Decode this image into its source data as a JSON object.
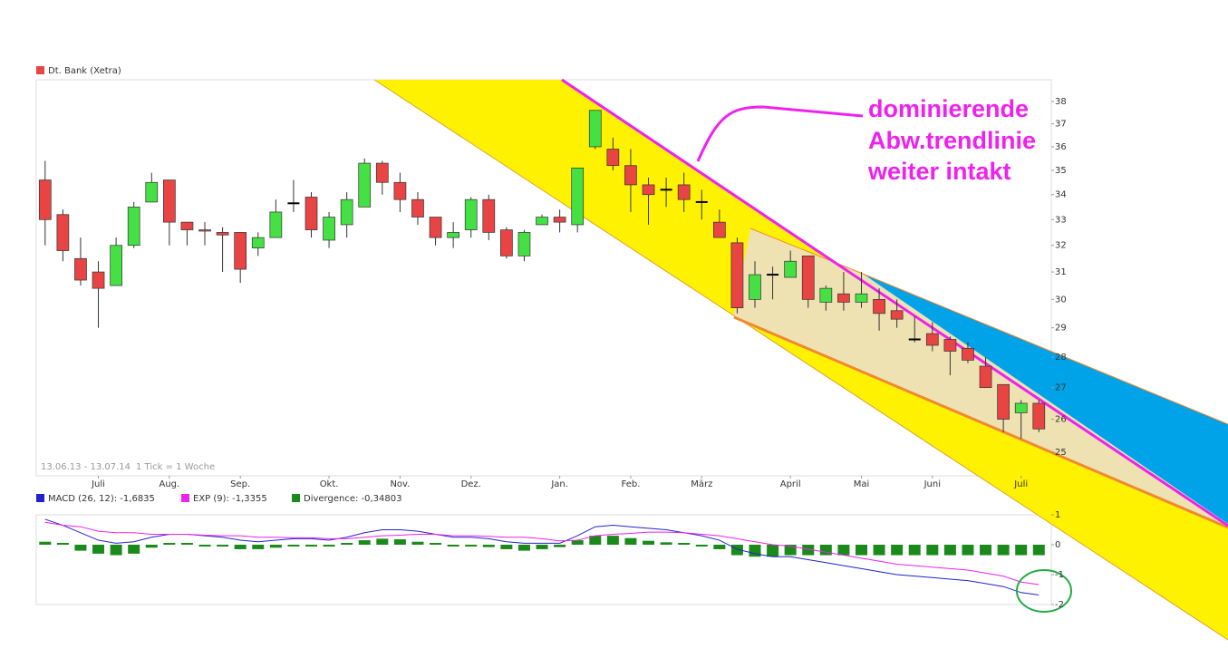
{
  "chart_data": [
    {
      "type": "candlestick",
      "legend": "Dt. Bank (Xetra)",
      "legend_color": "#e84444",
      "color_up": "#44e044",
      "color_down": "#e84444",
      "color_flat": "#000000",
      "log_scale": true,
      "ylim": [
        24.3,
        39
      ],
      "yticks": [
        25,
        26,
        27,
        28,
        29,
        30,
        31,
        32,
        33,
        34,
        35,
        36,
        37,
        38
      ],
      "xlim": [
        -0.5,
        56.7
      ],
      "xticks": [
        {
          "value": 3,
          "label": "Juli"
        },
        {
          "value": 7,
          "label": "Aug."
        },
        {
          "value": 11,
          "label": "Sep."
        },
        {
          "value": 16,
          "label": "Okt."
        },
        {
          "value": 20,
          "label": "Nov."
        },
        {
          "value": 24,
          "label": "Dez."
        },
        {
          "value": 29,
          "label": "Jan."
        },
        {
          "value": 33,
          "label": "Feb."
        },
        {
          "value": 37,
          "label": "März"
        },
        {
          "value": 42,
          "label": "April"
        },
        {
          "value": 46,
          "label": "Mai"
        },
        {
          "value": 50,
          "label": "Juni"
        },
        {
          "value": 55,
          "label": "Juli"
        }
      ],
      "open": [
        34.6,
        33.2,
        31.5,
        31.0,
        30.5,
        32.0,
        33.7,
        34.6,
        32.9,
        32.6,
        32.5,
        32.5,
        31.9,
        32.3,
        33.65,
        33.9,
        32.2,
        32.8,
        33.5,
        35.3,
        34.5,
        33.8,
        33.1,
        32.3,
        32.6,
        33.8,
        32.6,
        31.6,
        32.8,
        33.1,
        32.8,
        36.0,
        35.9,
        35.2,
        34.4,
        34.2,
        34.4,
        33.7,
        32.9,
        32.1,
        30.0,
        30.9,
        30.8,
        31.6,
        29.9,
        30.2,
        29.9,
        30.0,
        29.6,
        28.6,
        28.8,
        28.6,
        28.3,
        27.7,
        27.1,
        26.2,
        26.5
      ],
      "high": [
        35.4,
        33.4,
        32.3,
        31.4,
        32.3,
        33.7,
        34.9,
        34.6,
        32.9,
        32.9,
        32.7,
        32.5,
        32.5,
        33.8,
        34.6,
        34.1,
        33.3,
        34.1,
        35.5,
        35.4,
        34.9,
        34.1,
        33.1,
        32.9,
        33.9,
        34.0,
        32.7,
        32.6,
        33.2,
        33.4,
        35.1,
        37.6,
        36.4,
        35.9,
        34.7,
        34.7,
        34.9,
        34.2,
        33.4,
        32.3,
        31.4,
        31.2,
        31.8,
        31.6,
        30.5,
        31.0,
        31.0,
        30.4,
        30.0,
        29.4,
        29.2,
        28.7,
        28.5,
        28.0,
        27.1,
        26.6,
        26.6
      ],
      "low": [
        32.0,
        31.4,
        30.5,
        29.0,
        30.5,
        31.9,
        33.7,
        32.0,
        32.0,
        32.0,
        31.0,
        30.6,
        31.6,
        32.3,
        33.3,
        32.3,
        31.9,
        32.3,
        33.5,
        34.0,
        33.3,
        32.8,
        32.0,
        31.9,
        32.3,
        32.2,
        31.5,
        31.4,
        32.9,
        32.5,
        32.5,
        35.9,
        35.0,
        33.3,
        32.8,
        33.5,
        33.3,
        33.0,
        32.3,
        29.5,
        29.7,
        30.0,
        30.8,
        29.7,
        29.6,
        29.6,
        29.7,
        28.9,
        29.0,
        28.5,
        28.2,
        27.4,
        27.8,
        27.0,
        25.6,
        25.4,
        25.6
      ],
      "close": [
        33.0,
        31.8,
        30.7,
        30.4,
        32.0,
        33.5,
        34.5,
        32.9,
        32.6,
        32.55,
        32.4,
        31.1,
        32.3,
        33.3,
        33.65,
        32.6,
        33.1,
        33.8,
        35.3,
        34.5,
        33.8,
        33.1,
        32.3,
        32.5,
        33.8,
        32.5,
        31.6,
        32.5,
        33.1,
        32.9,
        35.1,
        37.6,
        35.2,
        34.4,
        34.0,
        34.2,
        33.8,
        33.7,
        32.3,
        29.7,
        30.9,
        30.9,
        31.4,
        30.0,
        30.4,
        29.9,
        30.2,
        29.5,
        29.3,
        28.6,
        28.4,
        28.2,
        27.9,
        27.0,
        26.0,
        26.5,
        25.7
      ],
      "footer": [
        "13.06.13 - 13.07.14",
        "1 Tick = 1 Woche"
      ],
      "annotation": [
        "dominierende",
        "Abw.trendlinie",
        "weiter intakt"
      ]
    },
    {
      "type": "macd",
      "ylim": [
        -2,
        1
      ],
      "yticks": [
        -2,
        -1,
        0,
        1
      ],
      "xlim": [
        -0.5,
        56.7
      ],
      "series": [
        {
          "name": "MACD (26, 12): -1,6835",
          "color": "#2222cc",
          "kind": "line",
          "values": [
            0.85,
            0.65,
            0.4,
            0.15,
            0.05,
            0.1,
            0.25,
            0.35,
            0.35,
            0.3,
            0.25,
            0.15,
            0.1,
            0.15,
            0.2,
            0.2,
            0.15,
            0.25,
            0.4,
            0.5,
            0.5,
            0.45,
            0.35,
            0.25,
            0.25,
            0.2,
            0.1,
            0.05,
            0.05,
            0.05,
            0.3,
            0.6,
            0.65,
            0.6,
            0.55,
            0.5,
            0.4,
            0.3,
            0.15,
            -0.15,
            -0.3,
            -0.4,
            -0.4,
            -0.5,
            -0.6,
            -0.7,
            -0.8,
            -0.9,
            -1.0,
            -1.05,
            -1.1,
            -1.15,
            -1.2,
            -1.3,
            -1.4,
            -1.6,
            -1.68
          ]
        },
        {
          "name": "EXP (9): -1,3355",
          "color": "#ee22ee",
          "kind": "line",
          "values": [
            0.75,
            0.65,
            0.6,
            0.45,
            0.4,
            0.4,
            0.35,
            0.35,
            0.35,
            0.32,
            0.3,
            0.3,
            0.25,
            0.25,
            0.23,
            0.23,
            0.2,
            0.2,
            0.25,
            0.3,
            0.32,
            0.35,
            0.35,
            0.3,
            0.3,
            0.28,
            0.25,
            0.25,
            0.2,
            0.13,
            0.15,
            0.3,
            0.35,
            0.38,
            0.42,
            0.42,
            0.4,
            0.35,
            0.3,
            0.2,
            0.1,
            0,
            -0.05,
            -0.15,
            -0.25,
            -0.35,
            -0.45,
            -0.55,
            -0.65,
            -0.7,
            -0.75,
            -0.8,
            -0.85,
            -0.95,
            -1.05,
            -1.25,
            -1.33
          ]
        },
        {
          "name": "Divergence: -0,34803",
          "color": "#1a8a1a",
          "kind": "bar",
          "values": [
            0.1,
            0,
            -0.2,
            -0.3,
            -0.35,
            -0.3,
            -0.1,
            0,
            0,
            -0.02,
            -0.05,
            -0.15,
            -0.15,
            -0.1,
            -0.03,
            -0.03,
            -0.05,
            0.05,
            0.15,
            0.2,
            0.18,
            0.1,
            0,
            -0.05,
            -0.05,
            -0.08,
            -0.15,
            -0.2,
            -0.15,
            -0.08,
            0.15,
            0.3,
            0.3,
            0.22,
            0.13,
            0.08,
            0,
            -0.05,
            -0.15,
            -0.35,
            -0.4,
            -0.4,
            -0.35,
            -0.35,
            -0.35,
            -0.35,
            -0.35,
            -0.35,
            -0.35,
            -0.35,
            -0.35,
            -0.35,
            -0.35,
            -0.35,
            -0.35,
            -0.35,
            -0.35
          ]
        }
      ]
    }
  ]
}
